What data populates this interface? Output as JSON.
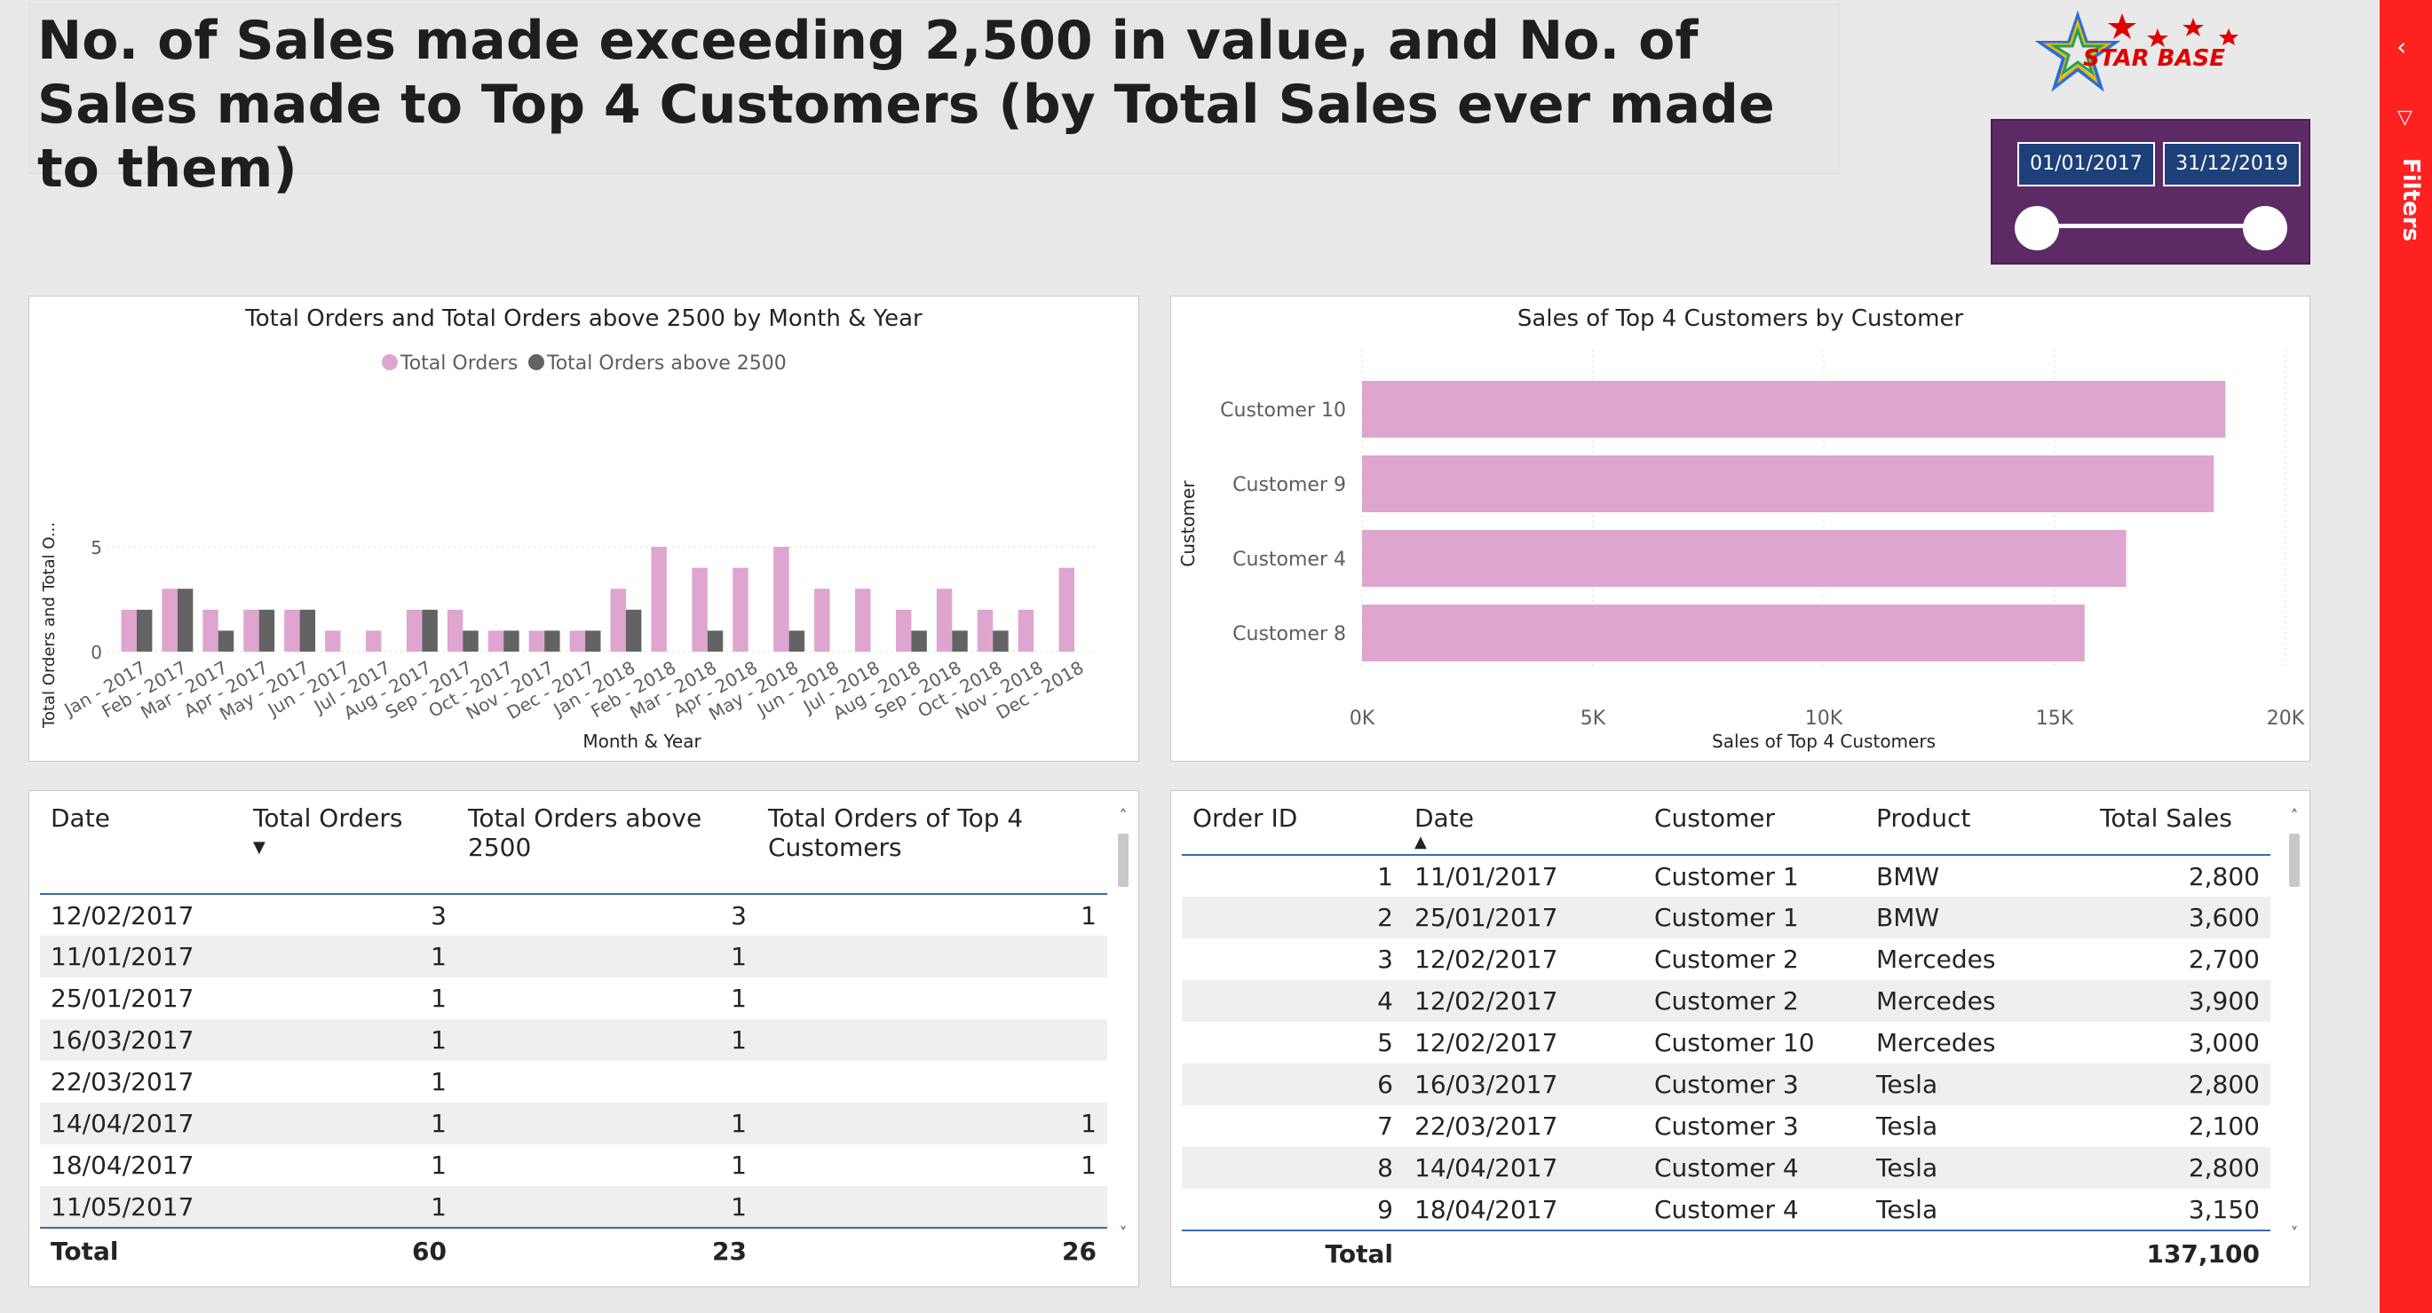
{
  "header": {
    "title": "No. of Sales made exceeding 2,500 in value, and No. of Sales made to Top 4 Customers (by Total Sales ever made to them)"
  },
  "logo": {
    "text": "STAR BASE"
  },
  "date_slicer": {
    "start": "01/01/2017",
    "end": "31/12/2019"
  },
  "filters_pane": {
    "label": "Filters"
  },
  "chart1": {
    "title": "Total Orders and Total Orders above 2500 by Month & Year",
    "legend": [
      "Total Orders",
      "Total Orders above 2500"
    ],
    "xlabel": "Month & Year",
    "ylabel": "Total Orders and Total O...",
    "colors": {
      "total": "#dea5cf",
      "above": "#636363"
    }
  },
  "chart2": {
    "title": "Sales of Top 4 Customers by Customer",
    "xlabel": "Sales of Top 4 Customers",
    "ylabel": "Customer",
    "color": "#dea5cf"
  },
  "chart_data": [
    {
      "type": "bar",
      "title": "Total Orders and Total Orders above 2500 by Month & Year",
      "xlabel": "Month & Year",
      "ylabel": "Total Orders and Total O...",
      "categories": [
        "Jan - 2017",
        "Feb - 2017",
        "Mar - 2017",
        "Apr - 2017",
        "May - 2017",
        "Jun - 2017",
        "Jul - 2017",
        "Aug - 2017",
        "Sep - 2017",
        "Oct - 2017",
        "Nov - 2017",
        "Dec - 2017",
        "Jan - 2018",
        "Feb - 2018",
        "Mar - 2018",
        "Apr - 2018",
        "May - 2018",
        "Jun - 2018",
        "Jul - 2018",
        "Aug - 2018",
        "Sep - 2018",
        "Oct - 2018",
        "Nov - 2018",
        "Dec - 2018"
      ],
      "series": [
        {
          "name": "Total Orders",
          "values": [
            2,
            3,
            2,
            2,
            2,
            1,
            1,
            2,
            2,
            1,
            1,
            1,
            3,
            5,
            4,
            4,
            5,
            3,
            3,
            2,
            3,
            2,
            2,
            4
          ]
        },
        {
          "name": "Total Orders above 2500",
          "values": [
            2,
            3,
            1,
            2,
            2,
            0,
            0,
            2,
            1,
            1,
            1,
            1,
            2,
            0,
            1,
            0,
            1,
            0,
            0,
            1,
            1,
            1,
            0,
            0
          ]
        }
      ],
      "yticks": [
        0,
        5
      ],
      "ylim": [
        0,
        5.5
      ],
      "legend_position": "top-center"
    },
    {
      "type": "bar",
      "orientation": "horizontal",
      "title": "Sales of Top 4 Customers by Customer",
      "xlabel": "Sales of Top 4 Customers",
      "ylabel": "Customer",
      "categories": [
        "Customer 10",
        "Customer 9",
        "Customer 4",
        "Customer 8"
      ],
      "values": [
        18700,
        18450,
        16550,
        15650
      ],
      "xticks": [
        "0K",
        "5K",
        "10K",
        "15K",
        "20K"
      ],
      "xlim": [
        0,
        20000
      ]
    }
  ],
  "table1": {
    "headers": [
      "Date",
      "Total Orders",
      "Total Orders above 2500",
      "Total Orders of Top 4 Customers"
    ],
    "rows": [
      [
        "12/02/2017",
        "3",
        "3",
        "1"
      ],
      [
        "11/01/2017",
        "1",
        "1",
        ""
      ],
      [
        "25/01/2017",
        "1",
        "1",
        ""
      ],
      [
        "16/03/2017",
        "1",
        "1",
        ""
      ],
      [
        "22/03/2017",
        "1",
        "",
        ""
      ],
      [
        "14/04/2017",
        "1",
        "1",
        "1"
      ],
      [
        "18/04/2017",
        "1",
        "1",
        "1"
      ],
      [
        "11/05/2017",
        "1",
        "1",
        ""
      ]
    ],
    "total": [
      "Total",
      "60",
      "23",
      "26"
    ]
  },
  "table2": {
    "headers": [
      "Order ID",
      "Date",
      "Customer",
      "Product",
      "Total Sales"
    ],
    "rows": [
      [
        "1",
        "11/01/2017",
        "Customer 1",
        "BMW",
        "2,800"
      ],
      [
        "2",
        "25/01/2017",
        "Customer 1",
        "BMW",
        "3,600"
      ],
      [
        "3",
        "12/02/2017",
        "Customer 2",
        "Mercedes",
        "2,700"
      ],
      [
        "4",
        "12/02/2017",
        "Customer 2",
        "Mercedes",
        "3,900"
      ],
      [
        "5",
        "12/02/2017",
        "Customer 10",
        "Mercedes",
        "3,000"
      ],
      [
        "6",
        "16/03/2017",
        "Customer 3",
        "Tesla",
        "2,800"
      ],
      [
        "7",
        "22/03/2017",
        "Customer 3",
        "Tesla",
        "2,100"
      ],
      [
        "8",
        "14/04/2017",
        "Customer 4",
        "Tesla",
        "2,800"
      ],
      [
        "9",
        "18/04/2017",
        "Customer 4",
        "Tesla",
        "3,150"
      ]
    ],
    "total": [
      "Total",
      "",
      "",
      "",
      "137,100"
    ]
  }
}
